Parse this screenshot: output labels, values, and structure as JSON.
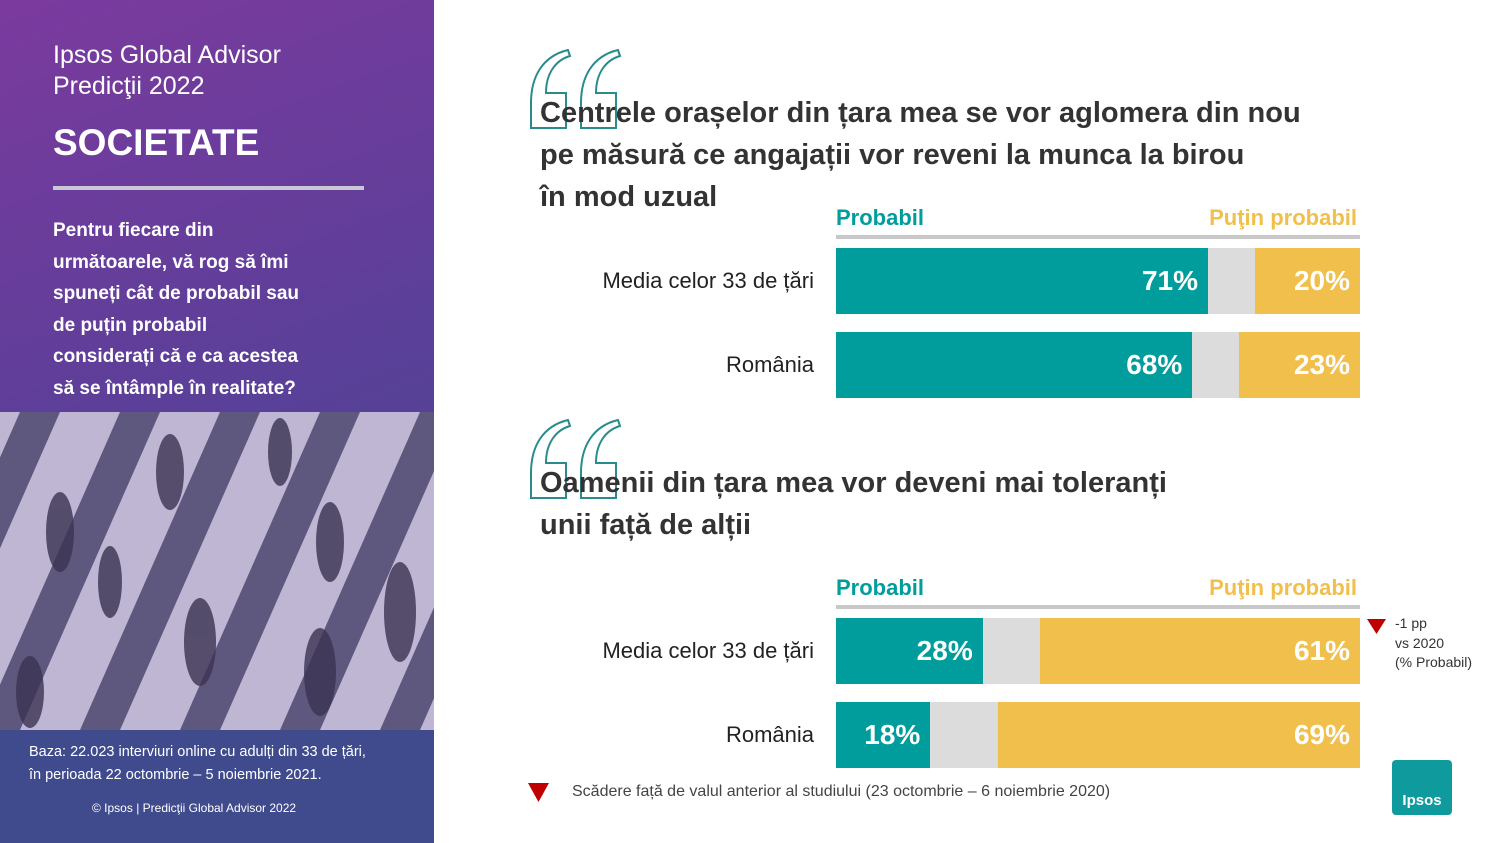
{
  "sidebar": {
    "brand_lines": [
      "Ipsos Global Advisor",
      "Predicţii 2022"
    ],
    "section": "SOCIETATE",
    "question_lines": [
      "Pentru fiecare din",
      "următoarele, vă rog să îmi",
      "spuneți cât de probabil sau",
      "de puțin probabil",
      "considerați că e ca acestea",
      "să se întâmple în realitate?"
    ],
    "base_lines": [
      "Baza: 22.023 interviuri online cu adulți din 33 de țări,",
      "în perioada 22 octombrie – 5 noiembrie 2021."
    ],
    "copyright": "© Ipsos | Predicţii Global Advisor 2022"
  },
  "chart_data": [
    {
      "type": "bar",
      "orientation": "horizontal",
      "stacked": true,
      "title": [
        "Centrele orașelor din țara mea se vor aglomera din nou",
        "pe măsură ce angajații vor reveni la munca la birou",
        "în mod uzual"
      ],
      "categories": [
        "Media celor 33 de țări",
        "România"
      ],
      "xlim": [
        0,
        100
      ],
      "series": [
        {
          "name": "Probabil",
          "color": "#009d9c",
          "values": [
            71,
            68
          ],
          "value_labels": [
            "71%",
            "68%"
          ]
        },
        {
          "name": "Puţin probabil",
          "color": "#f1bf4b",
          "values": [
            20,
            23
          ],
          "value_labels": [
            "20%",
            "23%"
          ]
        }
      ]
    },
    {
      "type": "bar",
      "orientation": "horizontal",
      "stacked": true,
      "title": [
        "Oamenii din țara mea vor deveni mai toleranți",
        "unii față de alții"
      ],
      "categories": [
        "Media celor 33 de țări",
        "România"
      ],
      "xlim": [
        0,
        100
      ],
      "series": [
        {
          "name": "Probabil",
          "color": "#009d9c",
          "values": [
            28,
            18
          ],
          "value_labels": [
            "28%",
            "18%"
          ]
        },
        {
          "name": "Puţin probabil",
          "color": "#f1bf4b",
          "values": [
            61,
            69
          ],
          "value_labels": [
            "61%",
            "69%"
          ]
        }
      ],
      "annotation": {
        "category": 0,
        "lines": [
          "-1 pp",
          "vs 2020",
          "(% Probabil)"
        ]
      }
    }
  ],
  "footnote": "Scădere față de valul anterior al studiului (23 octombrie – 6 noiembrie 2020)",
  "logo": "Ipsos"
}
